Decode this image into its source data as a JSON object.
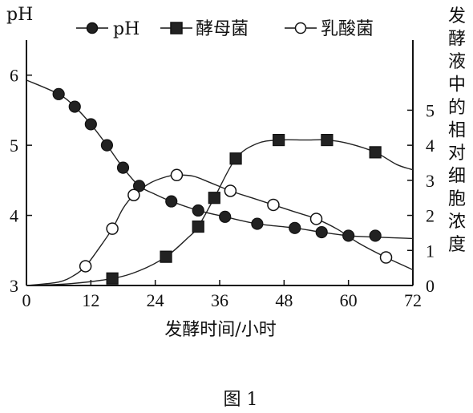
{
  "chart_data": {
    "type": "line",
    "xlabel": "发酵时间/小时",
    "x_ticks": [
      "0",
      "12",
      "24",
      "36",
      "48",
      "60",
      "72"
    ],
    "xlim": [
      0,
      72
    ],
    "y_left_label": "pH",
    "y_left_ticks": [
      "3",
      "4",
      "5",
      "6"
    ],
    "y_left_lim": [
      3,
      6.5
    ],
    "y_right_label": "发酵液中的相对细胞浓度",
    "y_right_ticks": [
      "0",
      "1",
      "2",
      "3",
      "4",
      "5"
    ],
    "y_right_lim": [
      0,
      7
    ],
    "caption": "图 1",
    "grid": false,
    "legend_position": "top",
    "series": [
      {
        "name": "pH",
        "axis": "left",
        "marker": "filled-circle",
        "x": [
          6,
          9,
          12,
          15,
          18,
          21,
          27,
          32,
          37,
          43,
          50,
          55,
          60,
          65
        ],
        "values": [
          5.73,
          5.55,
          5.3,
          5.0,
          4.68,
          4.42,
          4.2,
          4.07,
          3.98,
          3.88,
          3.82,
          3.76,
          3.71,
          3.71
        ],
        "curve_x": [
          0,
          6,
          9,
          12,
          15,
          18,
          21,
          24,
          27,
          32,
          37,
          43,
          50,
          55,
          60,
          65,
          72
        ],
        "curve_y": [
          5.93,
          5.73,
          5.55,
          5.3,
          5.0,
          4.68,
          4.42,
          4.3,
          4.2,
          4.07,
          3.98,
          3.88,
          3.82,
          3.76,
          3.71,
          3.69,
          3.67
        ]
      },
      {
        "name": "酵母菌",
        "axis": "right",
        "marker": "filled-square",
        "x": [
          16,
          26,
          32,
          35,
          39,
          47,
          56,
          65
        ],
        "values": [
          0.2,
          0.82,
          1.68,
          2.5,
          3.62,
          4.15,
          4.15,
          3.8
        ],
        "curve_x": [
          0,
          8,
          16,
          21,
          26,
          30,
          32,
          35,
          39,
          43,
          47,
          52,
          56,
          60,
          65,
          69,
          72
        ],
        "curve_y": [
          0,
          0.05,
          0.2,
          0.42,
          0.82,
          1.35,
          1.68,
          2.5,
          3.62,
          4.05,
          4.15,
          4.15,
          4.15,
          4.05,
          3.8,
          3.45,
          3.3
        ]
      },
      {
        "name": "乳酸菌",
        "axis": "right",
        "marker": "open-circle",
        "x": [
          11,
          16,
          20,
          28,
          38,
          46,
          54,
          67
        ],
        "values": [
          0.55,
          1.62,
          2.58,
          3.15,
          2.7,
          2.3,
          1.9,
          0.8
        ],
        "curve_x": [
          0,
          6,
          9,
          11,
          13,
          16,
          18,
          20,
          23,
          26,
          28,
          31,
          34,
          38,
          42,
          46,
          50,
          54,
          58,
          62,
          67,
          72
        ],
        "curve_y": [
          0,
          0.1,
          0.3,
          0.55,
          0.95,
          1.62,
          2.2,
          2.58,
          2.92,
          3.1,
          3.15,
          3.12,
          2.95,
          2.7,
          2.5,
          2.3,
          2.1,
          1.9,
          1.6,
          1.2,
          0.8,
          0.45
        ]
      }
    ]
  }
}
